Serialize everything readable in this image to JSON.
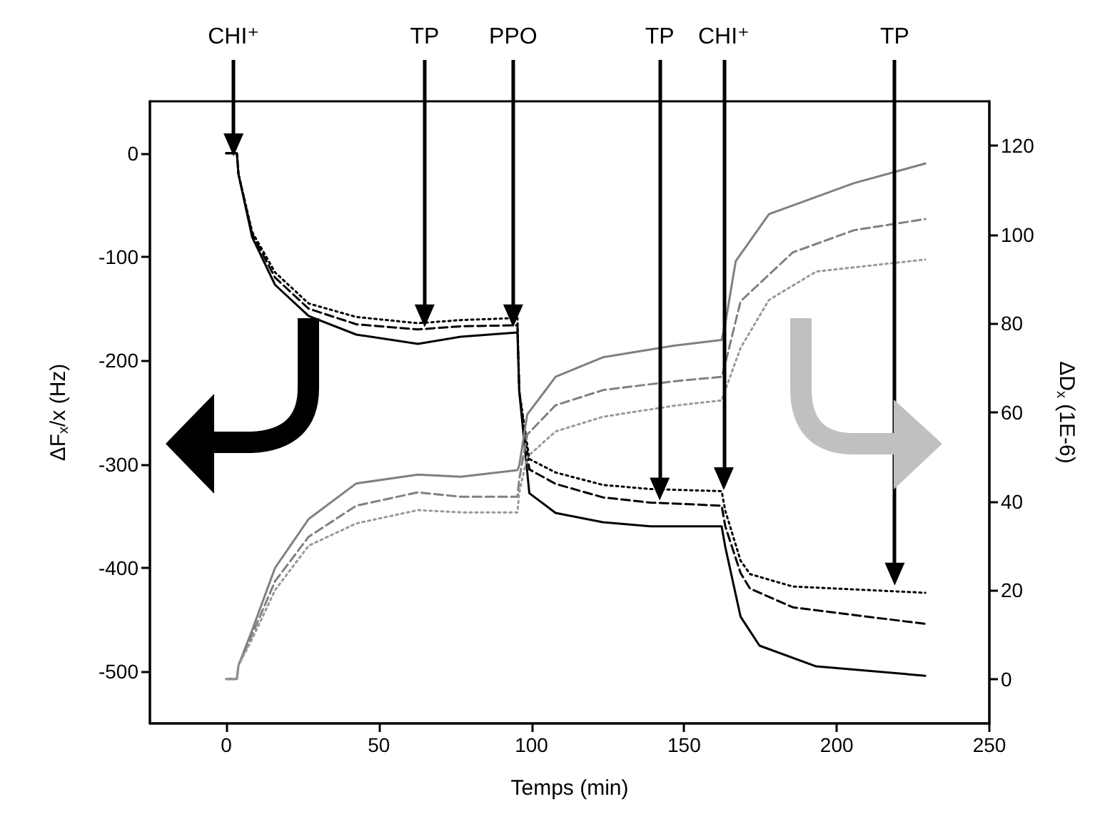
{
  "chart_data": {
    "type": "line",
    "xlabel": "Temps (min)",
    "ylabel": "ΔF$_{x}$/x (Hz)",
    "y2label": "ΔD$_{x}$ (1E-6)",
    "xlim": [
      -25,
      250
    ],
    "xticks": [
      0,
      50,
      100,
      150,
      200,
      250
    ],
    "ylim": [
      -550,
      50
    ],
    "yticks": [
      -500,
      -400,
      -300,
      -200,
      -100,
      0
    ],
    "y2lim": [
      -10,
      130
    ],
    "y2ticks": [
      0,
      20,
      40,
      60,
      80,
      100,
      120
    ],
    "grid": false,
    "marker": "none",
    "annotations": [
      {
        "text": "CHI⁺",
        "x": 2.4,
        "y": 8
      },
      {
        "text": "TP",
        "x": 65,
        "y": -157
      },
      {
        "text": "PPO",
        "x": 94,
        "y": -157
      },
      {
        "text": "TP",
        "x": 142,
        "y": -324
      },
      {
        "text": "CHI⁺",
        "x": 163,
        "y": -314
      },
      {
        "text": "TP",
        "x": 219,
        "y": -406
      }
    ],
    "series": [
      {
        "color": "#000000",
        "line_style": "solid",
        "x": [
          0,
          3.5,
          4,
          8.5,
          16,
          27,
          42.6,
          62.8,
          76.8,
          95.4,
          96,
          99.3,
          107.9,
          123.4,
          139,
          162.3,
          163.5,
          168.5,
          174.7,
          193.3,
          229
        ],
        "values": [
          0,
          0,
          -20,
          -81,
          -127,
          -157,
          -175,
          -184,
          -177,
          -173,
          -230,
          -328,
          -347,
          -356,
          -360,
          -360,
          -380,
          -447,
          -475,
          -495,
          -504
        ]
      },
      {
        "color": "#000000",
        "line_style": "dashed",
        "x": [
          0,
          3.5,
          4,
          8.5,
          16,
          27,
          42.6,
          62.8,
          76.8,
          95.4,
          96,
          99.3,
          107.9,
          123.4,
          139,
          162.3,
          163.5,
          168.5,
          171.6,
          185.6,
          229
        ],
        "values": [
          0,
          0,
          -20,
          -78,
          -120,
          -150,
          -165,
          -170,
          -167,
          -166,
          -230,
          -305,
          -319,
          -332,
          -337,
          -340,
          -360,
          -405,
          -420,
          -438,
          -454
        ]
      },
      {
        "color": "#000000",
        "line_style": "dotted",
        "x": [
          0,
          3.5,
          4,
          8.5,
          16,
          27,
          42.6,
          62.8,
          76.8,
          95.4,
          96,
          99.3,
          107.9,
          123.4,
          139,
          162.3,
          163.5,
          168.5,
          171.6,
          185.6,
          229
        ],
        "values": [
          0,
          0,
          -20,
          -76,
          -115,
          -145,
          -158,
          -164,
          -161,
          -159,
          -230,
          -295,
          -308,
          -320,
          -324,
          -326,
          -345,
          -393,
          -406,
          -418,
          -424
        ]
      },
      {
        "color": "#808080",
        "line_style": "solid",
        "axis": "y2",
        "x": [
          0,
          3.5,
          4,
          8.5,
          16,
          27,
          42.6,
          62.8,
          76.8,
          95.4,
          96,
          98.6,
          107.9,
          123.4,
          146.7,
          162.3,
          163.5,
          166.9,
          177.8,
          205.7,
          229
        ],
        "values": [
          0,
          0,
          3,
          11,
          25,
          36,
          44,
          46,
          45.5,
          47,
          48,
          59.5,
          68,
          72.4,
          75,
          76.3,
          80,
          94,
          104.6,
          111.6,
          116
        ]
      },
      {
        "color": "#808080",
        "line_style": "dashed",
        "axis": "y2",
        "x": [
          0,
          3.5,
          4,
          8.5,
          16,
          27,
          42.6,
          62.8,
          76.8,
          95.4,
          96,
          98.6,
          107.9,
          123.4,
          146.7,
          162.3,
          163.5,
          168.5,
          185.6,
          205.7,
          229
        ],
        "values": [
          0,
          0,
          3,
          10,
          22,
          32,
          39,
          42,
          41,
          41,
          45,
          55,
          61.6,
          65,
          67,
          68,
          71,
          85,
          96,
          101,
          103.5
        ]
      },
      {
        "color": "#999999",
        "line_style": "dotted",
        "axis": "y2",
        "x": [
          0,
          3.5,
          4,
          8.5,
          16,
          27,
          42.6,
          62.8,
          76.8,
          95.4,
          96,
          98.6,
          107.9,
          123.4,
          146.7,
          162.3,
          163.5,
          168.5,
          177.8,
          193.3,
          229
        ],
        "values": [
          0,
          0,
          3,
          9,
          20,
          30,
          35,
          38,
          37.5,
          37.5,
          42,
          50,
          55.7,
          59,
          61.5,
          62.7,
          65,
          74.5,
          85.3,
          91.7,
          94.4
        ]
      }
    ]
  }
}
